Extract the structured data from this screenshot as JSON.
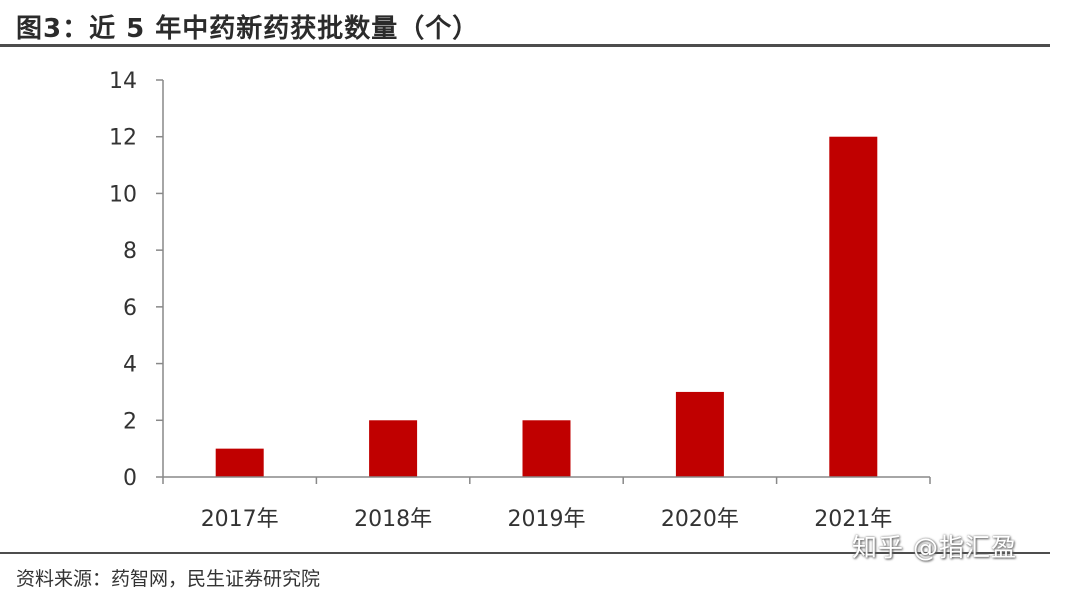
{
  "header": {
    "title": "图3：近 5 年中药新药获批数量（个）"
  },
  "footer": {
    "source": "资料来源：药智网，民生证券研究院",
    "watermark": "知乎 @指汇盈"
  },
  "colors": {
    "bar": "#c00000",
    "axis": "#888888",
    "rule": "#4d4d4d"
  },
  "chart_data": {
    "type": "bar",
    "categories": [
      "2017年",
      "2018年",
      "2019年",
      "2020年",
      "2021年"
    ],
    "values": [
      1,
      2,
      2,
      3,
      12
    ],
    "ylim": [
      0,
      14
    ],
    "yticks": [
      0,
      2,
      4,
      6,
      8,
      10,
      12,
      14
    ],
    "grid": false,
    "legend": "none"
  }
}
